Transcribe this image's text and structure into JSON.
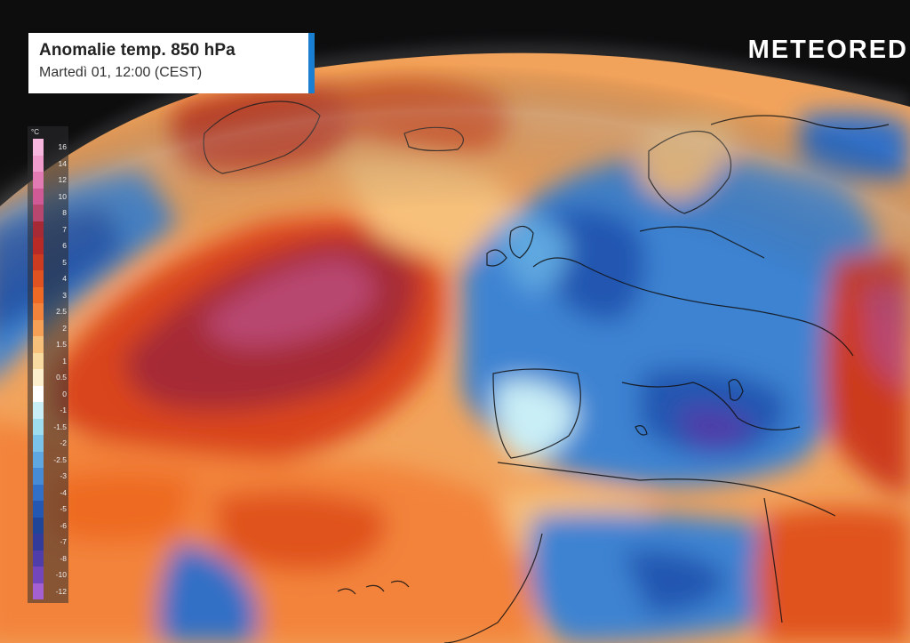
{
  "title": "Anomalie temp. 850 hPa",
  "subtitle": "Martedì 01, 12:00 (CEST)",
  "brand": "METEORED",
  "accent_color": "#1a7fd1",
  "legend": {
    "unit": "°C",
    "steps": [
      {
        "label": "16",
        "color": "#f7b6dd"
      },
      {
        "label": "14",
        "color": "#f09ccc"
      },
      {
        "label": "12",
        "color": "#e27ab3"
      },
      {
        "label": "10",
        "color": "#cf5a95"
      },
      {
        "label": "8",
        "color": "#b8476f"
      },
      {
        "label": "7",
        "color": "#a62a35"
      },
      {
        "label": "6",
        "color": "#b72a25"
      },
      {
        "label": "5",
        "color": "#cc3b1f"
      },
      {
        "label": "4",
        "color": "#e0521f"
      },
      {
        "label": "3",
        "color": "#ee6a24"
      },
      {
        "label": "2.5",
        "color": "#f3833a"
      },
      {
        "label": "2",
        "color": "#f5a055"
      },
      {
        "label": "1.5",
        "color": "#f7c07a"
      },
      {
        "label": "1",
        "color": "#f8dba0"
      },
      {
        "label": "0.5",
        "color": "#fbefce"
      },
      {
        "label": "0",
        "color": "#ffffff"
      },
      {
        "label": "-1",
        "color": "#c9eef6"
      },
      {
        "label": "-1.5",
        "color": "#9edcef"
      },
      {
        "label": "-2",
        "color": "#7cc3ea"
      },
      {
        "label": "-2.5",
        "color": "#5ea7e0"
      },
      {
        "label": "-3",
        "color": "#468bd5"
      },
      {
        "label": "-4",
        "color": "#3170c6"
      },
      {
        "label": "-5",
        "color": "#2457b1"
      },
      {
        "label": "-6",
        "color": "#1f4599"
      },
      {
        "label": "-7",
        "color": "#333b9a"
      },
      {
        "label": "-8",
        "color": "#4f3ea9"
      },
      {
        "label": "-10",
        "color": "#7346bb"
      },
      {
        "label": "-12",
        "color": "#a45fd1"
      }
    ]
  }
}
